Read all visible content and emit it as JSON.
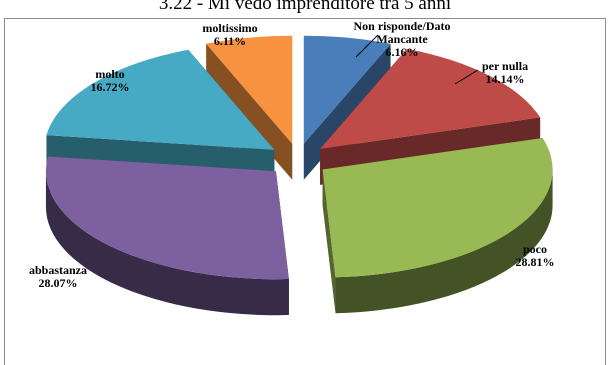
{
  "chart_data": {
    "type": "pie",
    "title": "3.22 - Mi vedo imprenditore tra 5 anni",
    "three_d": true,
    "exploded": true,
    "slices": [
      {
        "label": "Non risponde/Dato Mancante",
        "label_lines": [
          "Non risponde/Dato",
          "Mancante"
        ],
        "percent_text": "6.16%",
        "value": 6.16,
        "color": "#4a7ebb"
      },
      {
        "label": "per nulla",
        "label_lines": [
          "per nulla"
        ],
        "percent_text": "14.14%",
        "value": 14.14,
        "color": "#be4b48"
      },
      {
        "label": "poco",
        "label_lines": [
          "poco"
        ],
        "percent_text": "28.81%",
        "value": 28.81,
        "color": "#98b954"
      },
      {
        "label": "abbastanza",
        "label_lines": [
          "abbastanza"
        ],
        "percent_text": "28.07%",
        "value": 28.07,
        "color": "#7d60a0"
      },
      {
        "label": "molto",
        "label_lines": [
          "molto"
        ],
        "percent_text": "16.72%",
        "value": 16.72,
        "color": "#46aac5"
      },
      {
        "label": "moltissimo",
        "label_lines": [
          "moltissimo"
        ],
        "percent_text": "6.11%",
        "value": 6.11,
        "color": "#f69240"
      }
    ]
  }
}
